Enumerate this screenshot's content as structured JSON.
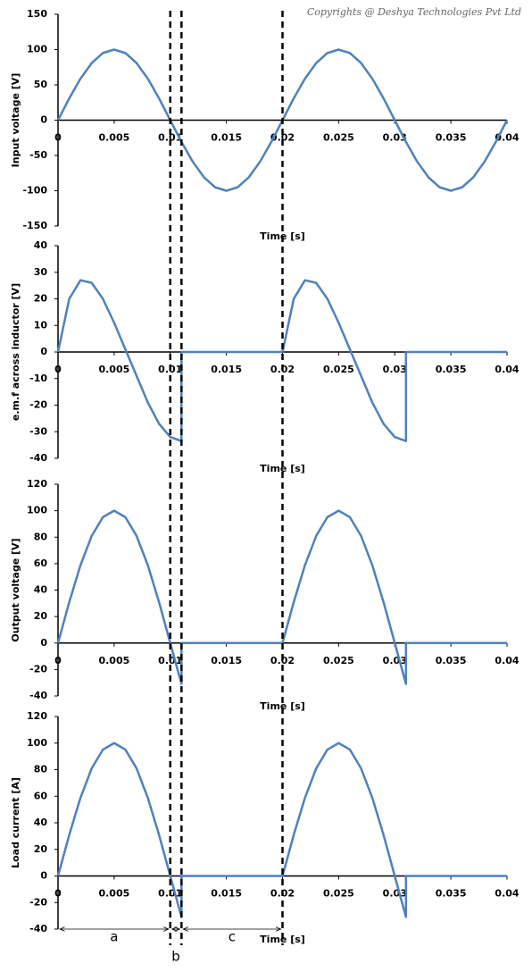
{
  "copyright": "Copyrights @ Deshya Technologies Pvt Ltd",
  "intervals": [
    {
      "label": "a",
      "start": 0,
      "end": 0.01
    },
    {
      "label": "b",
      "start": 0.01,
      "end": 0.011
    },
    {
      "label": "c",
      "start": 0.011,
      "end": 0.02
    }
  ],
  "chart_data": [
    {
      "type": "line",
      "ylabel": "Input voltage [V]",
      "xlabel": "Time [s]",
      "x": [
        0,
        0.001,
        0.002,
        0.003,
        0.004,
        0.005,
        0.006,
        0.007,
        0.008,
        0.009,
        0.01,
        0.011,
        0.012,
        0.013,
        0.014,
        0.015,
        0.016,
        0.017,
        0.018,
        0.019,
        0.02,
        0.021,
        0.022,
        0.023,
        0.024,
        0.025,
        0.026,
        0.027,
        0.028,
        0.029,
        0.03,
        0.031,
        0.032,
        0.033,
        0.034,
        0.035,
        0.036,
        0.037,
        0.038,
        0.039,
        0.04
      ],
      "series": [
        {
          "color": "#4f81bd",
          "values": [
            0,
            30.9,
            58.8,
            80.9,
            95.1,
            100,
            95.1,
            80.9,
            58.8,
            30.9,
            0,
            -30.9,
            -58.8,
            -80.9,
            -95.1,
            -100,
            -95.1,
            -80.9,
            -58.8,
            -30.9,
            0,
            30.9,
            58.8,
            80.9,
            95.1,
            100,
            95.1,
            80.9,
            58.8,
            30.9,
            0,
            -30.9,
            -58.8,
            -80.9,
            -95.1,
            -100,
            -95.1,
            -80.9,
            -58.8,
            -30.9,
            0
          ]
        }
      ],
      "xlim": [
        0,
        0.04
      ],
      "xticks": [
        0,
        0.005,
        0.01,
        0.015,
        0.02,
        0.025,
        0.03,
        0.035,
        0.04
      ],
      "ylim": [
        -150,
        150
      ],
      "yticks": [
        -150,
        -100,
        -50,
        0,
        50,
        100,
        150
      ]
    },
    {
      "type": "line",
      "ylabel": "e.m.f across inductor [V]",
      "xlabel": "Time [s]",
      "x": [
        0,
        0.001,
        0.002,
        0.003,
        0.004,
        0.005,
        0.006,
        0.007,
        0.008,
        0.009,
        0.01,
        0.011,
        0.011,
        0.02,
        0.021,
        0.022,
        0.023,
        0.024,
        0.025,
        0.026,
        0.027,
        0.028,
        0.029,
        0.03,
        0.031,
        0.031,
        0.04
      ],
      "series": [
        {
          "color": "#4f81bd",
          "values": [
            0,
            20,
            27,
            26,
            20,
            11,
            1,
            -9,
            -19,
            -27,
            -32,
            -33.5,
            0,
            0,
            20,
            27,
            26,
            20,
            11,
            1,
            -9,
            -19,
            -27,
            -32,
            -33.5,
            0,
            0
          ]
        }
      ],
      "xlim": [
        0,
        0.04
      ],
      "xticks": [
        0,
        0.005,
        0.01,
        0.015,
        0.02,
        0.025,
        0.03,
        0.035,
        0.04
      ],
      "ylim": [
        -40,
        40
      ],
      "yticks": [
        -40,
        -30,
        -20,
        -10,
        0,
        10,
        20,
        30,
        40
      ]
    },
    {
      "type": "line",
      "ylabel": "Output voltage [V]",
      "xlabel": "Time [s]",
      "x": [
        0,
        0.001,
        0.002,
        0.003,
        0.004,
        0.005,
        0.006,
        0.007,
        0.008,
        0.009,
        0.01,
        0.011,
        0.011,
        0.02,
        0.021,
        0.022,
        0.023,
        0.024,
        0.025,
        0.026,
        0.027,
        0.028,
        0.029,
        0.03,
        0.031,
        0.031,
        0.04
      ],
      "series": [
        {
          "color": "#4f81bd",
          "values": [
            0,
            30.9,
            58.8,
            80.9,
            95.1,
            100,
            95.1,
            80.9,
            58.8,
            30.9,
            0,
            -30.9,
            0,
            0,
            30.9,
            58.8,
            80.9,
            95.1,
            100,
            95.1,
            80.9,
            58.8,
            30.9,
            0,
            -30.9,
            0,
            0
          ]
        }
      ],
      "xlim": [
        0,
        0.04
      ],
      "xticks": [
        0,
        0.005,
        0.01,
        0.015,
        0.02,
        0.025,
        0.03,
        0.035,
        0.04
      ],
      "ylim": [
        -40,
        120
      ],
      "yticks": [
        -40,
        -20,
        0,
        20,
        40,
        60,
        80,
        100,
        120
      ]
    },
    {
      "type": "line",
      "ylabel": "Load current [A]",
      "xlabel": "Time [s]",
      "x": [
        0,
        0.001,
        0.002,
        0.003,
        0.004,
        0.005,
        0.006,
        0.007,
        0.008,
        0.009,
        0.01,
        0.011,
        0.011,
        0.02,
        0.021,
        0.022,
        0.023,
        0.024,
        0.025,
        0.026,
        0.027,
        0.028,
        0.029,
        0.03,
        0.031,
        0.031,
        0.04
      ],
      "series": [
        {
          "color": "#4f81bd",
          "values": [
            0,
            30.9,
            58.8,
            80.9,
            95.1,
            100,
            95.1,
            80.9,
            58.8,
            30.9,
            0,
            -30.9,
            0,
            0,
            30.9,
            58.8,
            80.9,
            95.1,
            100,
            95.1,
            80.9,
            58.8,
            30.9,
            0,
            -30.9,
            0,
            0
          ]
        }
      ],
      "xlim": [
        0,
        0.04
      ],
      "xticks": [
        0,
        0.005,
        0.01,
        0.015,
        0.02,
        0.025,
        0.03,
        0.035,
        0.04
      ],
      "ylim": [
        -40,
        120
      ],
      "yticks": [
        -40,
        -20,
        0,
        20,
        40,
        60,
        80,
        100,
        120
      ]
    }
  ]
}
